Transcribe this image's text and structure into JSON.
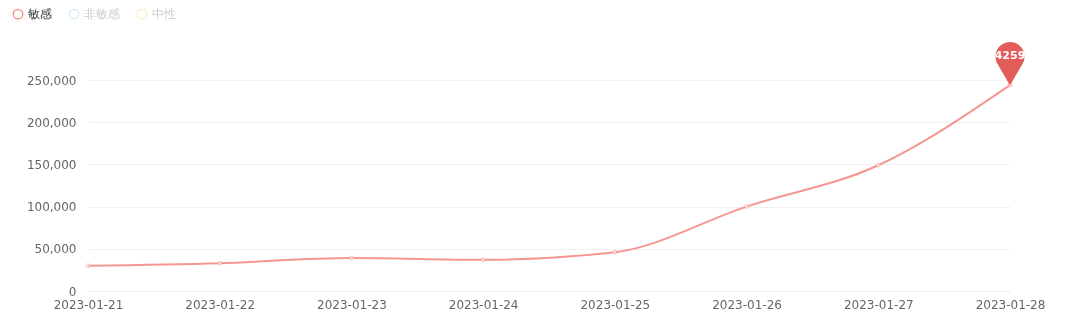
{
  "chart_data": {
    "type": "line",
    "categories": [
      "2023-01-21",
      "2023-01-22",
      "2023-01-23",
      "2023-01-24",
      "2023-01-25",
      "2023-01-26",
      "2023-01-27",
      "2023-01-28"
    ],
    "series": [
      {
        "name": "敏感",
        "color": "#f59791",
        "values": [
          30000,
          33000,
          39000,
          37000,
          46000,
          100000,
          149000,
          244000
        ]
      },
      {
        "name": "非敏感",
        "color": "#d5e9f7",
        "values": [
          null,
          null,
          null,
          null,
          null,
          null,
          null,
          null
        ]
      },
      {
        "name": "中性",
        "color": "#fcefc9",
        "values": [
          null,
          null,
          null,
          null,
          null,
          null,
          null,
          null
        ]
      }
    ],
    "ylim": [
      0,
      250000
    ],
    "yticks": [
      0,
      {
        "value": 50000,
        "label": "50,000"
      },
      {
        "value": 100000,
        "label": "100,000"
      },
      {
        "value": 150000,
        "label": "150,000"
      },
      {
        "value": 200000,
        "label": "200,000"
      },
      {
        "value": 250000,
        "label": "250,000"
      }
    ],
    "grid": "y",
    "legend": "top left",
    "marker": "circle",
    "annotations": [
      {
        "text": "4259",
        "x": "2023-01-28",
        "y": 244000
      }
    ]
  }
}
